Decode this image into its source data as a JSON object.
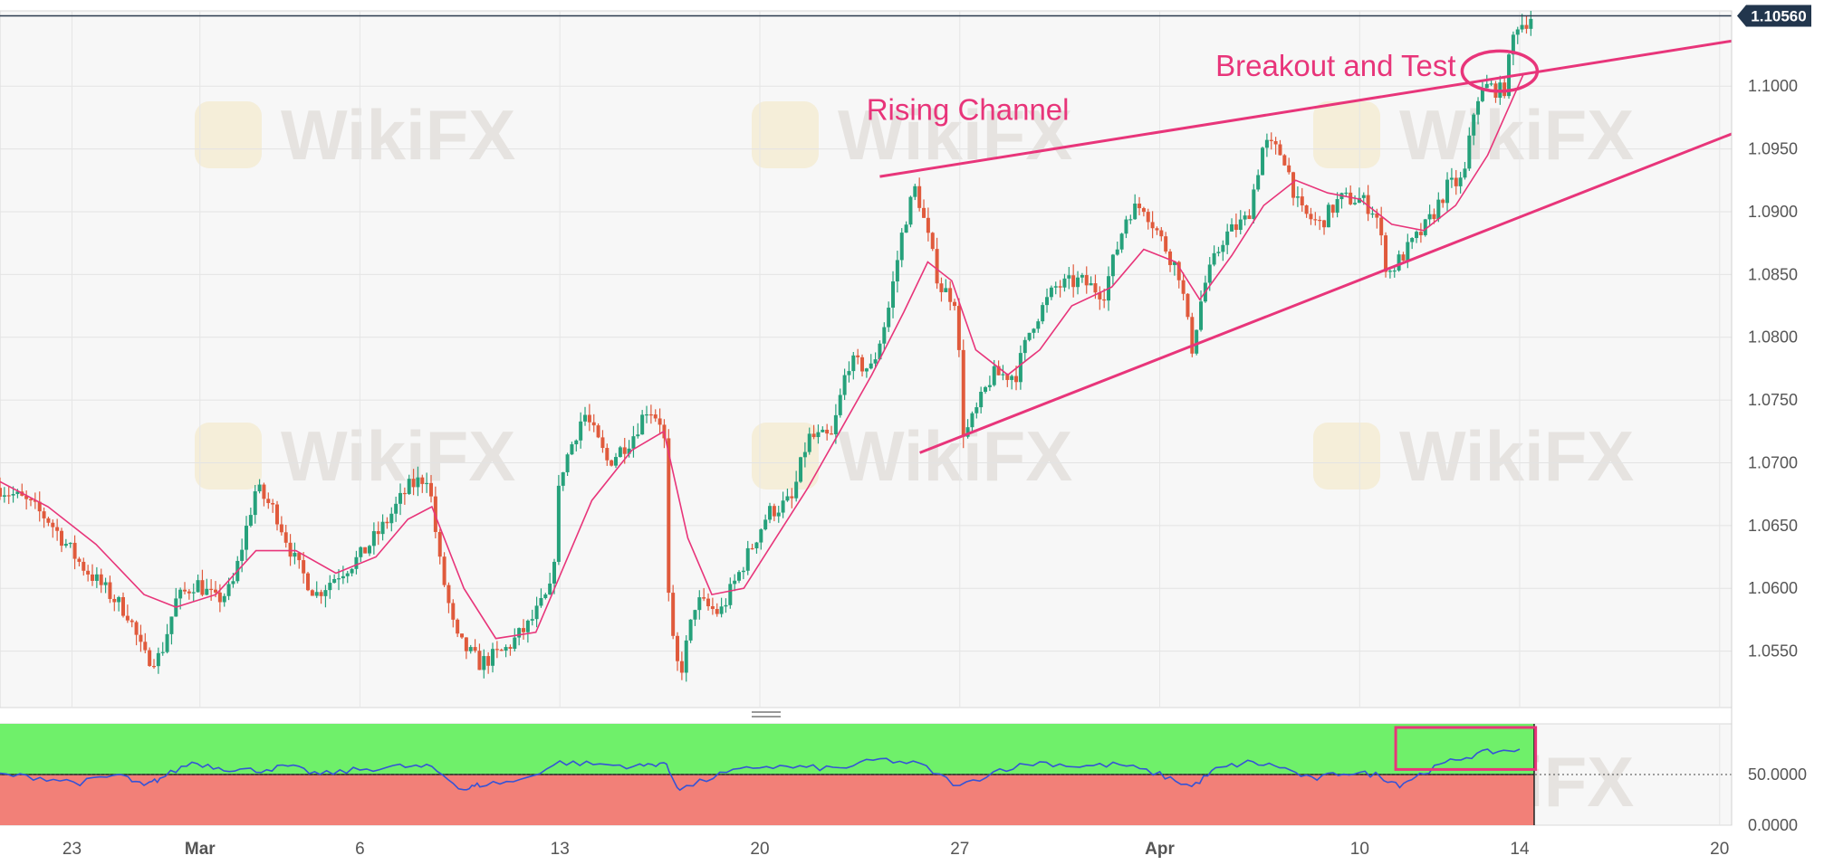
{
  "watermark": {
    "text": "WikiFX"
  },
  "chart_data": [
    {
      "type": "candlestick",
      "description_of_series": "EUR/USD price with short moving average",
      "series": [
        {
          "kind": "ohlc",
          "color_up": "#26a17b",
          "color_down": "#e05a3c"
        },
        {
          "kind": "moving_average",
          "color": "#e8357a"
        }
      ],
      "y_ticks": [
        "1.0550",
        "1.0600",
        "1.0650",
        "1.0700",
        "1.0750",
        "1.0800",
        "1.0850",
        "1.0900",
        "1.0950",
        "1.1000"
      ],
      "ylim": [
        1.0505,
        1.106
      ],
      "x_ticks": [
        {
          "label": "23",
          "bold": false,
          "t": 0.9
        },
        {
          "label": "Mar",
          "bold": true,
          "t": 2.5
        },
        {
          "label": "6",
          "bold": false,
          "t": 4.5
        },
        {
          "label": "13",
          "bold": false,
          "t": 7.0
        },
        {
          "label": "20",
          "bold": false,
          "t": 9.5
        },
        {
          "label": "27",
          "bold": false,
          "t": 12.0
        },
        {
          "label": "Apr",
          "bold": true,
          "t": 14.5
        },
        {
          "label": "10",
          "bold": false,
          "t": 17.0
        },
        {
          "label": "14",
          "bold": false,
          "t": 19.0
        },
        {
          "label": "20",
          "bold": false,
          "t": 21.5
        }
      ],
      "xlim": [
        0,
        21.65
      ],
      "path": [
        [
          0.0,
          1.068
        ],
        [
          0.3,
          1.067
        ],
        [
          0.6,
          1.0655
        ],
        [
          1.0,
          1.062
        ],
        [
          1.3,
          1.06
        ],
        [
          1.6,
          1.058
        ],
        [
          1.8,
          1.0545
        ],
        [
          2.0,
          1.0545
        ],
        [
          2.2,
          1.059
        ],
        [
          2.45,
          1.0605
        ],
        [
          2.7,
          1.059
        ],
        [
          2.9,
          1.06
        ],
        [
          3.2,
          1.068
        ],
        [
          3.45,
          1.066
        ],
        [
          3.7,
          1.062
        ],
        [
          3.95,
          1.0595
        ],
        [
          4.2,
          1.061
        ],
        [
          4.5,
          1.0625
        ],
        [
          4.8,
          1.065
        ],
        [
          5.1,
          1.068
        ],
        [
          5.35,
          1.069
        ],
        [
          5.5,
          1.062
        ],
        [
          5.7,
          1.056
        ],
        [
          6.0,
          1.054
        ],
        [
          6.3,
          1.055
        ],
        [
          6.6,
          1.057
        ],
        [
          6.9,
          1.06
        ],
        [
          7.0,
          1.069
        ],
        [
          7.3,
          1.074
        ],
        [
          7.6,
          1.07
        ],
        [
          7.9,
          1.072
        ],
        [
          8.1,
          1.0745
        ],
        [
          8.3,
          1.073
        ],
        [
          8.35,
          1.06
        ],
        [
          8.4,
          1.056
        ],
        [
          8.5,
          1.053
        ],
        [
          8.7,
          1.059
        ],
        [
          9.0,
          1.058
        ],
        [
          9.3,
          1.062
        ],
        [
          9.6,
          1.066
        ],
        [
          9.9,
          1.067
        ],
        [
          10.1,
          1.072
        ],
        [
          10.4,
          1.072
        ],
        [
          10.6,
          1.078
        ],
        [
          10.9,
          1.0775
        ],
        [
          11.1,
          1.082
        ],
        [
          11.3,
          1.089
        ],
        [
          11.45,
          1.092
        ],
        [
          11.6,
          1.088
        ],
        [
          11.75,
          1.084
        ],
        [
          11.95,
          1.083
        ],
        [
          12.05,
          1.072
        ],
        [
          12.2,
          1.074
        ],
        [
          12.4,
          1.077
        ],
        [
          12.7,
          1.077
        ],
        [
          12.9,
          1.081
        ],
        [
          13.2,
          1.084
        ],
        [
          13.5,
          1.0845
        ],
        [
          13.8,
          1.0835
        ],
        [
          14.1,
          1.09
        ],
        [
          14.3,
          1.0905
        ],
        [
          14.5,
          1.088
        ],
        [
          14.75,
          1.085
        ],
        [
          14.9,
          1.079
        ],
        [
          15.05,
          1.084
        ],
        [
          15.3,
          1.088
        ],
        [
          15.6,
          1.0895
        ],
        [
          15.8,
          1.0955
        ],
        [
          16.05,
          1.0945
        ],
        [
          16.25,
          1.09
        ],
        [
          16.5,
          1.089
        ],
        [
          16.75,
          1.091
        ],
        [
          17.0,
          1.091
        ],
        [
          17.2,
          1.09
        ],
        [
          17.35,
          1.085
        ],
        [
          17.6,
          1.087
        ],
        [
          17.85,
          1.089
        ],
        [
          18.1,
          1.092
        ],
        [
          18.3,
          1.0925
        ],
        [
          18.45,
          1.099
        ],
        [
          18.6,
          1.1
        ],
        [
          18.8,
          1.0995
        ],
        [
          18.95,
          1.105
        ],
        [
          19.05,
          1.105
        ],
        [
          19.15,
          1.1056
        ]
      ],
      "ma_path": [
        [
          0.0,
          1.0685
        ],
        [
          0.6,
          1.0665
        ],
        [
          1.2,
          1.0635
        ],
        [
          1.8,
          1.0595
        ],
        [
          2.2,
          1.0585
        ],
        [
          2.7,
          1.0595
        ],
        [
          3.2,
          1.063
        ],
        [
          3.7,
          1.063
        ],
        [
          4.2,
          1.0612
        ],
        [
          4.7,
          1.0625
        ],
        [
          5.1,
          1.0655
        ],
        [
          5.4,
          1.0665
        ],
        [
          5.8,
          1.06
        ],
        [
          6.2,
          1.056
        ],
        [
          6.7,
          1.0565
        ],
        [
          7.0,
          1.061
        ],
        [
          7.4,
          1.067
        ],
        [
          7.9,
          1.071
        ],
        [
          8.3,
          1.0725
        ],
        [
          8.6,
          1.064
        ],
        [
          8.9,
          1.0595
        ],
        [
          9.3,
          1.06
        ],
        [
          9.7,
          1.064
        ],
        [
          10.1,
          1.068
        ],
        [
          10.5,
          1.0725
        ],
        [
          10.9,
          1.077
        ],
        [
          11.3,
          1.082
        ],
        [
          11.6,
          1.086
        ],
        [
          11.9,
          1.0845
        ],
        [
          12.2,
          1.079
        ],
        [
          12.6,
          1.077
        ],
        [
          13.0,
          1.079
        ],
        [
          13.4,
          1.0825
        ],
        [
          13.9,
          1.084
        ],
        [
          14.3,
          1.087
        ],
        [
          14.7,
          1.086
        ],
        [
          15.0,
          1.083
        ],
        [
          15.4,
          1.0865
        ],
        [
          15.8,
          1.0905
        ],
        [
          16.2,
          1.0925
        ],
        [
          16.6,
          1.0915
        ],
        [
          17.0,
          1.091
        ],
        [
          17.4,
          1.089
        ],
        [
          17.8,
          1.0885
        ],
        [
          18.2,
          1.0905
        ],
        [
          18.6,
          1.0945
        ],
        [
          19.05,
          1.101
        ]
      ],
      "channel_lines": [
        {
          "name": "upper",
          "x": [
            11.0,
            21.65
          ],
          "y": [
            1.0928,
            1.1036
          ]
        },
        {
          "name": "lower",
          "x": [
            11.5,
            21.65
          ],
          "y": [
            1.0708,
            1.0962
          ]
        }
      ],
      "annotations": [
        {
          "text": "Rising Channel",
          "x": 12.1,
          "y": 1.0973
        },
        {
          "text": "Breakout and Test",
          "x": 16.7,
          "y": 1.1008
        }
      ],
      "highlight_ellipse": {
        "x": 18.75,
        "y": 1.1012,
        "rx": 0.47,
        "ry": 0.0016
      },
      "current_price": {
        "label": "1.10560",
        "value": 1.1056
      }
    },
    {
      "type": "line",
      "description_of_series": "oscillator panel",
      "y_ticks": [
        "50.0000",
        "0.0000"
      ],
      "ylim": [
        0,
        100
      ],
      "zones": [
        {
          "from": 50,
          "to": 100,
          "color": "#6ff06a"
        },
        {
          "from": 0,
          "to": 50,
          "color": "#f28078"
        }
      ],
      "series": [
        {
          "color": "#3553d6",
          "x": [
            0,
            0.5,
            1.0,
            1.5,
            1.8,
            2.0,
            2.4,
            2.8,
            3.2,
            3.6,
            4.0,
            4.5,
            5.0,
            5.4,
            5.8,
            6.0,
            6.5,
            7.0,
            7.5,
            8.0,
            8.3,
            8.5,
            9.0,
            9.5,
            10.0,
            10.5,
            11.0,
            11.5,
            12.0,
            12.5,
            13.0,
            13.5,
            14.0,
            14.5,
            14.9,
            15.2,
            15.6,
            16.0,
            16.4,
            16.8,
            17.2,
            17.5,
            17.8,
            18.2,
            18.6,
            19.0
          ],
          "y": [
            50,
            47,
            42,
            50,
            38,
            46,
            62,
            56,
            54,
            58,
            50,
            55,
            58,
            57,
            35,
            40,
            44,
            62,
            60,
            58,
            62,
            35,
            50,
            58,
            57,
            56,
            65,
            60,
            38,
            55,
            62,
            58,
            60,
            50,
            38,
            55,
            62,
            58,
            45,
            52,
            50,
            40,
            52,
            65,
            72,
            75
          ]
        }
      ],
      "highlight_box": {
        "x0": 17.45,
        "x1": 19.2,
        "y0": 55,
        "y1": 100
      }
    }
  ]
}
